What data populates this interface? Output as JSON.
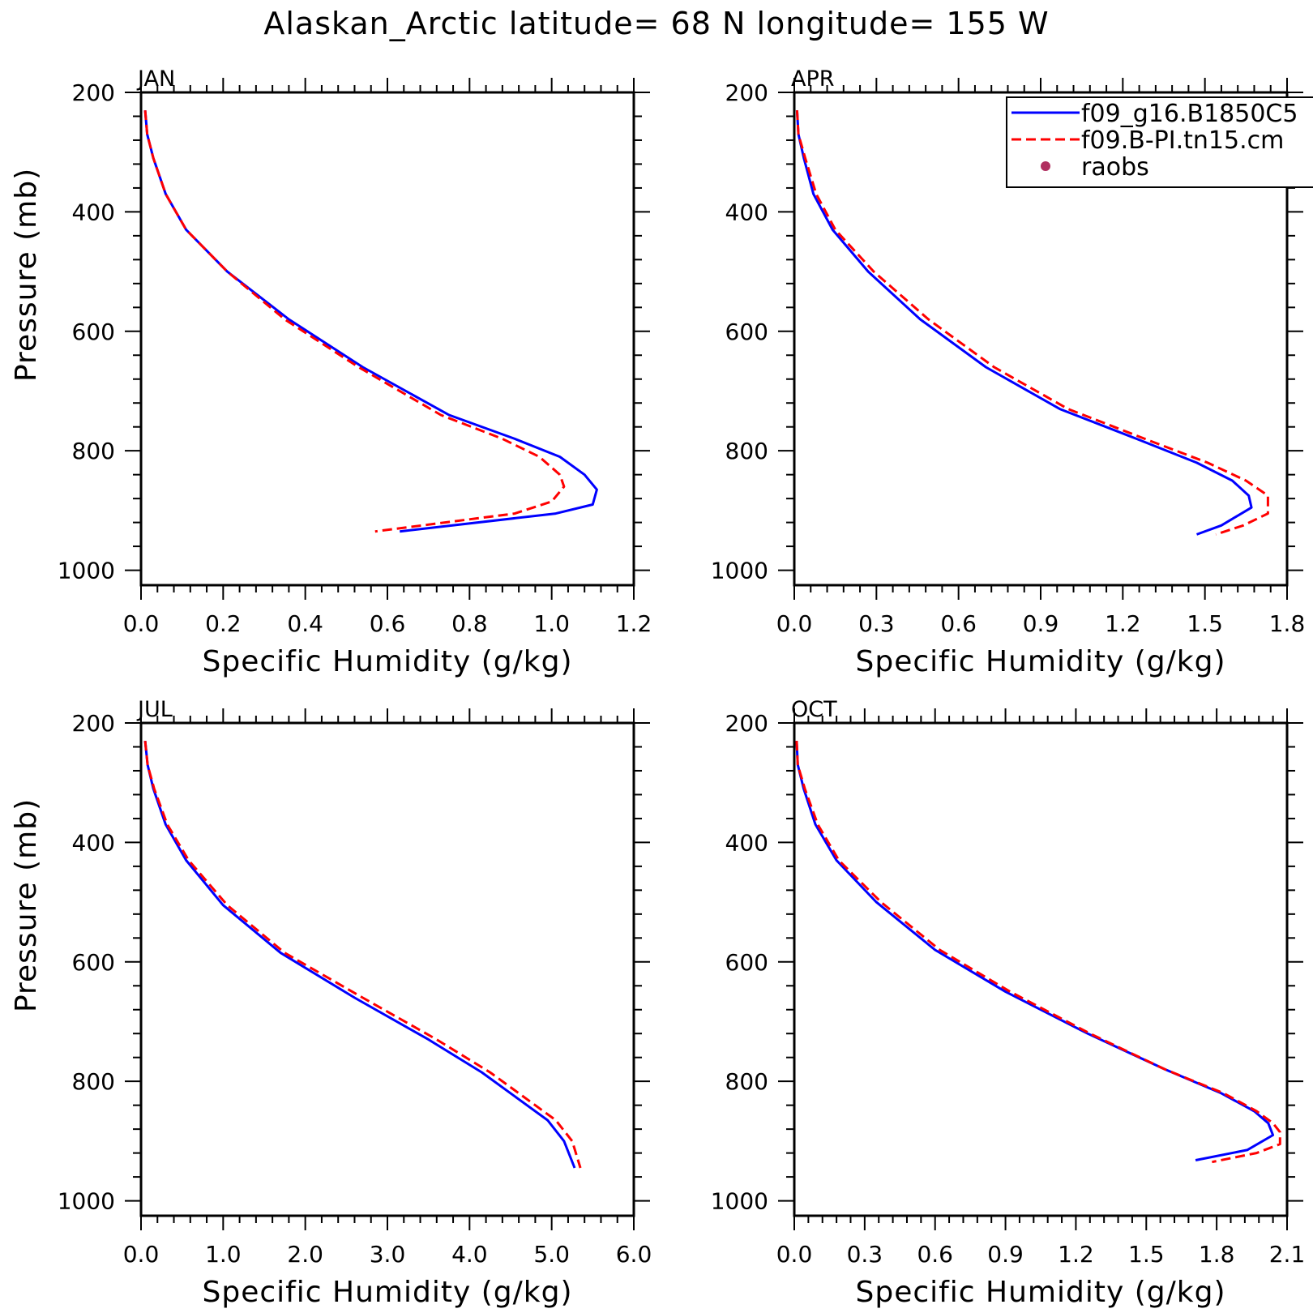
{
  "title": "Alaskan_Arctic  latitude= 68 N longitude= 155 W",
  "legend": {
    "entries": [
      {
        "label": "f09_g16.B1850C5",
        "color": "#0000ff",
        "style": "solid"
      },
      {
        "label": "f09.B-PI.tn15.cm",
        "color": "#ff0000",
        "style": "dashed"
      },
      {
        "label": "raobs",
        "color": "#b03060",
        "style": "dot"
      }
    ]
  },
  "chart_data": [
    {
      "type": "line",
      "panel_label": "JAN",
      "xlabel": "Specific Humidity (g/kg)",
      "ylabel": "Pressure (mb)",
      "xlim": [
        0,
        1.2
      ],
      "ylim": [
        1000,
        200
      ],
      "xticks": [
        "0.0",
        "0.2",
        "0.4",
        "0.6",
        "0.8",
        "1.0",
        "1.2"
      ],
      "yticks": [
        "200",
        "400",
        "600",
        "800",
        "1000"
      ],
      "series": [
        {
          "name": "f09_g16.B1850C5",
          "color": "#0000ff",
          "dash": false,
          "x": [
            0.01,
            0.015,
            0.03,
            0.06,
            0.11,
            0.21,
            0.36,
            0.54,
            0.75,
            0.91,
            1.02,
            1.08,
            1.11,
            1.1,
            1.01,
            0.63
          ],
          "y": [
            230,
            270,
            310,
            370,
            430,
            500,
            580,
            660,
            740,
            780,
            810,
            840,
            865,
            890,
            905,
            935
          ]
        },
        {
          "name": "f09.B-PI.tn15.cm",
          "color": "#ff0000",
          "dash": true,
          "x": [
            0.01,
            0.015,
            0.03,
            0.06,
            0.11,
            0.21,
            0.35,
            0.53,
            0.73,
            0.88,
            0.97,
            1.02,
            1.03,
            1.0,
            0.91,
            0.57
          ],
          "y": [
            230,
            270,
            310,
            370,
            430,
            500,
            580,
            660,
            740,
            780,
            810,
            840,
            860,
            885,
            905,
            935
          ]
        }
      ]
    },
    {
      "type": "line",
      "panel_label": "APR",
      "xlabel": "Specific Humidity (g/kg)",
      "ylabel": "",
      "xlim": [
        0,
        1.8
      ],
      "ylim": [
        1000,
        200
      ],
      "xticks": [
        "0.0",
        "0.3",
        "0.6",
        "0.9",
        "1.2",
        "1.5",
        "1.8"
      ],
      "yticks": [
        "200",
        "400",
        "600",
        "800",
        "1000"
      ],
      "series": [
        {
          "name": "f09_g16.B1850C5",
          "color": "#0000ff",
          "dash": false,
          "x": [
            0.01,
            0.015,
            0.035,
            0.07,
            0.14,
            0.27,
            0.46,
            0.7,
            0.97,
            1.25,
            1.47,
            1.6,
            1.66,
            1.67,
            1.56,
            1.47
          ],
          "y": [
            230,
            270,
            310,
            370,
            430,
            500,
            580,
            660,
            730,
            780,
            820,
            850,
            875,
            895,
            925,
            940
          ]
        },
        {
          "name": "f09.B-PI.tn15.cm",
          "color": "#ff0000",
          "dash": true,
          "x": [
            0.01,
            0.015,
            0.04,
            0.08,
            0.15,
            0.29,
            0.49,
            0.73,
            1.0,
            1.28,
            1.51,
            1.65,
            1.73,
            1.73,
            1.64,
            1.54
          ],
          "y": [
            230,
            270,
            310,
            370,
            430,
            500,
            580,
            660,
            730,
            780,
            820,
            850,
            875,
            905,
            925,
            940
          ]
        }
      ]
    },
    {
      "type": "line",
      "panel_label": "JUL",
      "xlabel": "Specific Humidity (g/kg)",
      "ylabel": "Pressure (mb)",
      "xlim": [
        0,
        6
      ],
      "ylim": [
        1000,
        200
      ],
      "xticks": [
        "0.0",
        "1.0",
        "2.0",
        "3.0",
        "4.0",
        "5.0",
        "6.0"
      ],
      "yticks": [
        "200",
        "400",
        "600",
        "800",
        "1000"
      ],
      "series": [
        {
          "name": "f09_g16.B1850C5",
          "color": "#0000ff",
          "dash": false,
          "x": [
            0.05,
            0.08,
            0.15,
            0.3,
            0.55,
            1.0,
            1.7,
            2.6,
            3.5,
            4.15,
            4.6,
            4.95,
            5.15,
            5.28
          ],
          "y": [
            230,
            270,
            310,
            370,
            430,
            505,
            585,
            660,
            730,
            785,
            830,
            865,
            900,
            945
          ]
        },
        {
          "name": "f09.B-PI.tn15.cm",
          "color": "#ff0000",
          "dash": true,
          "x": [
            0.05,
            0.08,
            0.16,
            0.32,
            0.58,
            1.05,
            1.75,
            2.7,
            3.6,
            4.25,
            4.7,
            5.05,
            5.25,
            5.35
          ],
          "y": [
            230,
            270,
            310,
            370,
            430,
            505,
            585,
            660,
            730,
            785,
            830,
            865,
            900,
            945
          ]
        }
      ]
    },
    {
      "type": "line",
      "panel_label": "OCT",
      "xlabel": "Specific Humidity (g/kg)",
      "ylabel": "",
      "xlim": [
        0,
        2.1
      ],
      "ylim": [
        1000,
        200
      ],
      "xticks": [
        "0.0",
        "0.3",
        "0.6",
        "0.9",
        "1.2",
        "1.5",
        "1.8",
        "2.1"
      ],
      "yticks": [
        "200",
        "400",
        "600",
        "800",
        "1000"
      ],
      "series": [
        {
          "name": "f09_g16.B1850C5",
          "color": "#0000ff",
          "dash": false,
          "x": [
            0.01,
            0.015,
            0.04,
            0.09,
            0.18,
            0.35,
            0.6,
            0.9,
            1.25,
            1.58,
            1.82,
            1.96,
            2.02,
            2.04,
            1.93,
            1.71
          ],
          "y": [
            230,
            270,
            310,
            370,
            430,
            500,
            580,
            650,
            720,
            780,
            820,
            850,
            870,
            890,
            915,
            932
          ]
        },
        {
          "name": "f09.B-PI.tn15.cm",
          "color": "#ff0000",
          "dash": true,
          "x": [
            0.01,
            0.015,
            0.045,
            0.1,
            0.19,
            0.37,
            0.62,
            0.92,
            1.26,
            1.58,
            1.83,
            1.97,
            2.04,
            2.07,
            2.07,
            1.97,
            1.78
          ],
          "y": [
            230,
            270,
            310,
            370,
            430,
            500,
            580,
            650,
            720,
            780,
            820,
            850,
            870,
            885,
            905,
            920,
            935
          ]
        }
      ]
    }
  ]
}
